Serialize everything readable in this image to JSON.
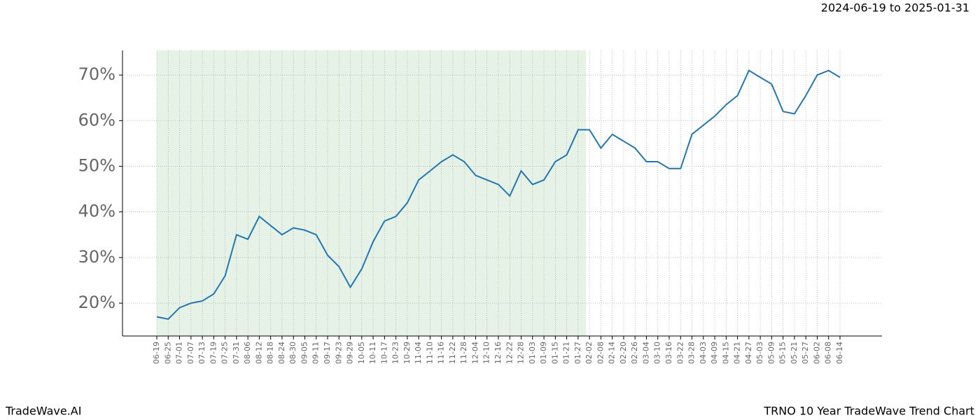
{
  "chart_data": {
    "type": "line",
    "title": "TRNO 10 Year TradeWave Trend Chart",
    "subtitle": "2024-06-19 to 2025-01-31",
    "brand": "TradeWave.AI",
    "categories": [
      "06-19",
      "06-25",
      "07-01",
      "07-07",
      "07-13",
      "07-19",
      "07-25",
      "07-31",
      "08-06",
      "08-12",
      "08-18",
      "08-24",
      "08-30",
      "09-05",
      "09-11",
      "09-17",
      "09-23",
      "09-29",
      "10-05",
      "10-11",
      "10-17",
      "10-23",
      "10-29",
      "11-04",
      "11-10",
      "11-16",
      "11-22",
      "11-28",
      "12-04",
      "12-10",
      "12-16",
      "12-22",
      "12-28",
      "01-03",
      "01-09",
      "01-15",
      "01-21",
      "01-27",
      "02-02",
      "02-08",
      "02-14",
      "02-20",
      "02-26",
      "03-04",
      "03-10",
      "03-16",
      "03-22",
      "03-28",
      "04-03",
      "04-09",
      "04-15",
      "04-21",
      "04-27",
      "05-03",
      "05-09",
      "05-15",
      "05-21",
      "05-27",
      "06-02",
      "06-08",
      "06-14"
    ],
    "values": [
      17,
      16.5,
      19,
      20,
      20.5,
      22,
      26,
      35,
      34,
      39,
      37,
      35,
      36.5,
      36,
      35,
      30.5,
      28,
      23.5,
      27.5,
      33.5,
      38,
      39,
      42,
      47,
      49,
      51,
      52.5,
      51,
      48,
      47,
      46,
      43.5,
      49,
      46,
      47,
      51,
      52.5,
      58,
      58,
      54,
      57,
      55.5,
      54,
      51,
      51,
      49.5,
      49.5,
      57,
      59,
      61,
      63.5,
      65.5,
      71,
      69.5,
      68,
      62,
      61.5,
      65.5,
      70,
      71,
      69.5
    ],
    "color": "#1f77b4",
    "shade_range": [
      0,
      37.7
    ],
    "shade_color": "#e6f2e6",
    "ylim": [
      12.8,
      75.4
    ],
    "yticks": [
      {
        "value": 20,
        "label": "20%"
      },
      {
        "value": 30,
        "label": "30%"
      },
      {
        "value": 40,
        "label": "40%"
      },
      {
        "value": 50,
        "label": "50%"
      },
      {
        "value": 60,
        "label": "60%"
      },
      {
        "value": 70,
        "label": "70%"
      }
    ],
    "grid": true
  }
}
